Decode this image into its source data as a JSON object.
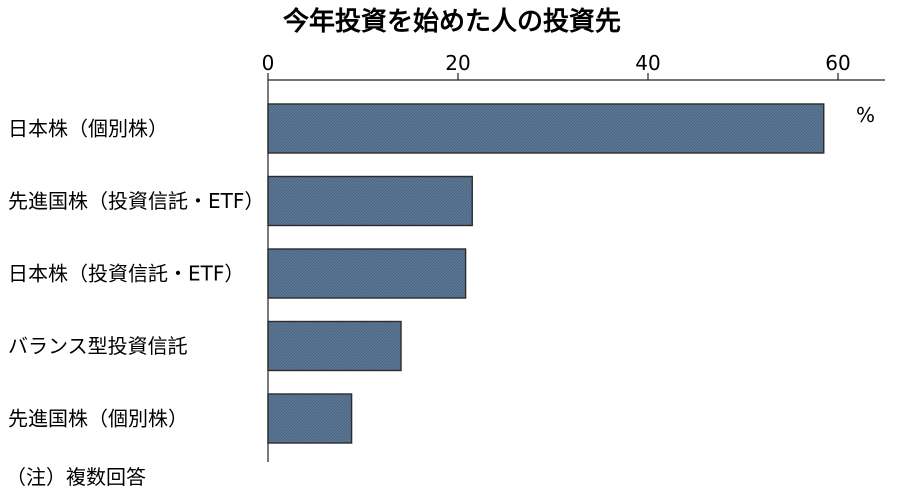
{
  "chart_data": {
    "type": "bar",
    "orientation": "horizontal",
    "title": "今年投資を始めた人の投資先",
    "unit": "%",
    "note": "（注）複数回答",
    "categories": [
      "日本株（個別株）",
      "先進国株（投資信託・ETF）",
      "日本株（投資信託・ETF）",
      "バランス型投資信託",
      "先進国株（個別株）"
    ],
    "values": [
      58.5,
      21.5,
      20.8,
      14.0,
      8.8
    ],
    "xlim": [
      0,
      65
    ],
    "xticks": [
      0,
      20,
      40,
      60
    ],
    "x_axis_position": "top",
    "grid": false,
    "bar_color": "#5d7895",
    "bar_border_color": "#2b2b2b"
  }
}
